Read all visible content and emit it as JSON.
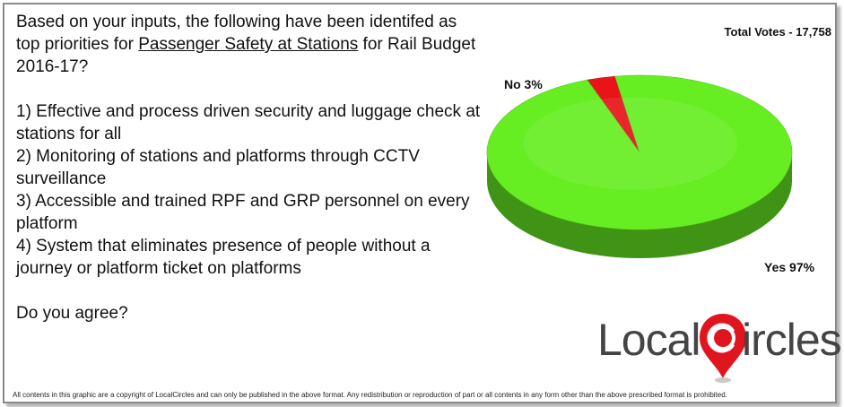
{
  "question": {
    "intro_before": "Based on your inputs, the following have been identifed as top priorities for ",
    "intro_underlined": "Passenger Safety at Stations",
    "intro_after": " for Rail Budget 2016-17?",
    "items": [
      "1) Effective and process driven security and luggage check at stations for all",
      "2) Monitoring of stations and platforms through CCTV surveillance",
      "3) Accessible and trained RPF and GRP personnel on every platform",
      "4) System that eliminates presence of people without a journey or platform ticket on platforms"
    ],
    "closing": "Do you agree?"
  },
  "total_votes": "Total Votes - 17,758",
  "chart_data": {
    "type": "pie",
    "title": "",
    "slices": [
      {
        "category": "Yes",
        "value": 97,
        "label": "Yes 97%",
        "color": "#66ee22"
      },
      {
        "category": "No",
        "value": 3,
        "label": "No 3%",
        "color": "#e8141a"
      }
    ],
    "legend": "none"
  },
  "logo": {
    "local": "Local",
    "ircles": "ircles",
    "pin_color": "#e0161f"
  },
  "copyright": "All contents in this graphic are a copyright of LocalCircles and can only be published in the above format. Any redistribution or reproduction of part or all contents in any form other than the above prescribed format is prohibited."
}
